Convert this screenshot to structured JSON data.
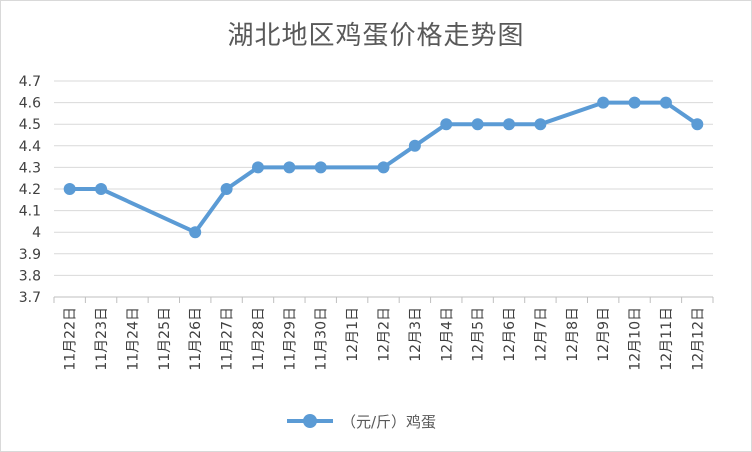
{
  "chart_data": {
    "type": "line",
    "title": "湖北地区鸡蛋价格走势图",
    "categories": [
      "11月22日",
      "11月23日",
      "11月24日",
      "11月25日",
      "11月26日",
      "11月27日",
      "11月28日",
      "11月29日",
      "11月30日",
      "12月1日",
      "12月2日",
      "12月3日",
      "12月4日",
      "12月5日",
      "12月6日",
      "12月7日",
      "12月8日",
      "12月9日",
      "12月10日",
      "12月11日",
      "12月12日"
    ],
    "y_ticks": [
      "3.7",
      "3.8",
      "3.9",
      "4",
      "4.1",
      "4.2",
      "4.3",
      "4.4",
      "4.5",
      "4.6",
      "4.7"
    ],
    "ylim": [
      3.7,
      4.7
    ],
    "grid": true,
    "legend_position": "bottom",
    "series": [
      {
        "name": "（元/斤）鸡蛋",
        "color": "#5b9bd5",
        "values": [
          4.2,
          4.2,
          null,
          null,
          4.0,
          4.2,
          4.3,
          4.3,
          4.3,
          null,
          4.3,
          4.4,
          4.5,
          4.5,
          4.5,
          4.5,
          null,
          4.6,
          4.6,
          4.6,
          4.5
        ]
      }
    ]
  }
}
